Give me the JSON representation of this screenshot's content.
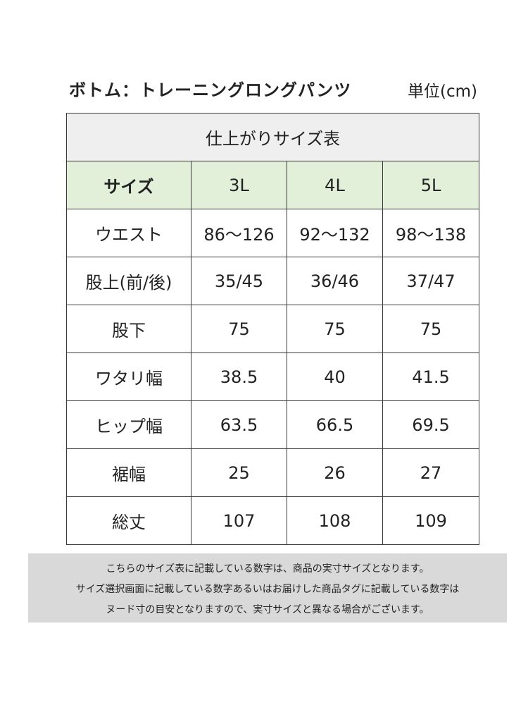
{
  "title": "ボトム：トレーニングロングパンツ",
  "unit": "単位(cm)",
  "caption": "仕上がりサイズ表",
  "header": {
    "label": "サイズ",
    "sizes": [
      "3L",
      "4L",
      "5L"
    ]
  },
  "rows": [
    {
      "label": "ウエスト",
      "values": [
        "86〜126",
        "92〜132",
        "98〜138"
      ]
    },
    {
      "label": "股上(前/後)",
      "values": [
        "35/45",
        "36/46",
        "37/47"
      ]
    },
    {
      "label": "股下",
      "values": [
        "75",
        "75",
        "75"
      ]
    },
    {
      "label": "ワタリ幅",
      "values": [
        "38.5",
        "40",
        "41.5"
      ]
    },
    {
      "label": "ヒップ幅",
      "values": [
        "63.5",
        "66.5",
        "69.5"
      ]
    },
    {
      "label": "裾幅",
      "values": [
        "25",
        "26",
        "27"
      ]
    },
    {
      "label": "総丈",
      "values": [
        "107",
        "108",
        "109"
      ]
    }
  ],
  "note": {
    "line1": "こちらのサイズ表に記載している数字は、商品の実寸サイズとなります。",
    "line2": "サイズ選択画面に記載している数字あるいはお届けした商品タグに記載している数字は",
    "line3": "ヌード寸の目安となりますので、実寸サイズと異なる場合がございます。"
  },
  "colors": {
    "header_bg": "#e2efd9",
    "caption_bg": "#efefef",
    "note_bg": "#d9d9d9",
    "border": "#3a3a3a"
  }
}
